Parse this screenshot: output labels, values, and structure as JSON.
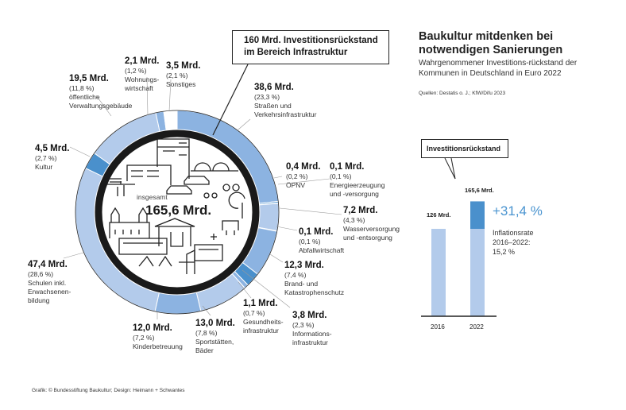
{
  "header": {
    "title": "Baukultur mitdenken bei notwendigen Sanierungen",
    "subtitle": "Wahrgenommener Investitions-rückstand der Kommunen in Deutschland in Euro 2022",
    "sources": "Quellen: Destatis o. J.; KfW/Difu 2023"
  },
  "callout": "160 Mrd. Investitionsrückstand im Bereich Infrastruktur",
  "footer": "Grafik: © Bundesstiftung Baukultur; Design: Heimann + Schwantes",
  "colors": {
    "light": "#b3cbeb",
    "mid": "#8cb3e1",
    "dark": "#4a90cc",
    "none": "#ffffff",
    "ring": "#1a1a1a"
  },
  "chart_data": [
    {
      "type": "pie",
      "variant": "donut",
      "center_label": "insgesamt",
      "center_value": "165,6 Mrd.",
      "total": 165.6,
      "unit": "Mrd. Euro",
      "slices": [
        {
          "value": 38.6,
          "value_label": "38,6 Mrd.",
          "percent_label": "(23,3 %)",
          "name": "Straßen und\nVerkehrsinfrastruktur",
          "color": "mid"
        },
        {
          "value": 0.4,
          "value_label": "0,4 Mrd.",
          "percent_label": "(0,2 %)",
          "name": "ÖPNV",
          "color": "dark"
        },
        {
          "value": 0.1,
          "value_label": "0,1 Mrd.",
          "percent_label": "(0,1 %)",
          "name": "Energieerzeugung\nund -versorgung",
          "color": "mid"
        },
        {
          "value": 7.2,
          "value_label": "7,2 Mrd.",
          "percent_label": "(4,3 %)",
          "name": "Wasserversorgung\nund -entsorgung",
          "color": "light"
        },
        {
          "value": 0.1,
          "value_label": "0,1 Mrd.",
          "percent_label": "(0,1 %)",
          "name": "Abfallwirtschaft",
          "color": "mid"
        },
        {
          "value": 12.3,
          "value_label": "12,3 Mrd.",
          "percent_label": "(7,4 %)",
          "name": "Brand- und\nKatastrophenschutz",
          "color": "mid"
        },
        {
          "value": 3.8,
          "value_label": "3,8 Mrd.",
          "percent_label": "(2,3 %)",
          "name": "Informations-\ninfrastruktur",
          "color": "dark"
        },
        {
          "value": 1.1,
          "value_label": "1,1 Mrd.",
          "percent_label": "(0,7 %)",
          "name": "Gesundheits-\ninfrastruktur",
          "color": "mid"
        },
        {
          "value": 13.0,
          "value_label": "13,0 Mrd.",
          "percent_label": "(7,8 %)",
          "name": "Sportstätten,\nBäder",
          "color": "light"
        },
        {
          "value": 12.0,
          "value_label": "12,0 Mrd.",
          "percent_label": "(7,2 %)",
          "name": "Kinderbetreuung",
          "color": "mid"
        },
        {
          "value": 47.4,
          "value_label": "47,4 Mrd.",
          "percent_label": "(28,6 %)",
          "name": "Schulen inkl.\nErwachsenen-\nbildung",
          "color": "light"
        },
        {
          "value": 4.5,
          "value_label": "4,5 Mrd.",
          "percent_label": "(2,7 %)",
          "name": "Kultur",
          "color": "dark"
        },
        {
          "value": 19.5,
          "value_label": "19,5 Mrd.",
          "percent_label": "(11,8 %)",
          "name": "öffentliche\nVerwaltungsgebäude",
          "color": "light"
        },
        {
          "value": 2.1,
          "value_label": "2,1 Mrd.",
          "percent_label": "(1,2 %)",
          "name": "Wohnungs-\nwirtschaft",
          "color": "mid"
        },
        {
          "value": 3.5,
          "value_label": "3,5 Mrd.",
          "percent_label": "(2,1 %)",
          "name": "Sonstiges",
          "color": "none"
        }
      ]
    },
    {
      "type": "bar",
      "title": "Investitionsrückstand",
      "categories": [
        "2016",
        "2022"
      ],
      "values": [
        126,
        165.6
      ],
      "value_labels": [
        "126 Mrd.",
        "165,6 Mrd."
      ],
      "increase_label": "+31,4 %",
      "note": "Inflationsrate\n2016–2022:\n15,2 %"
    }
  ]
}
